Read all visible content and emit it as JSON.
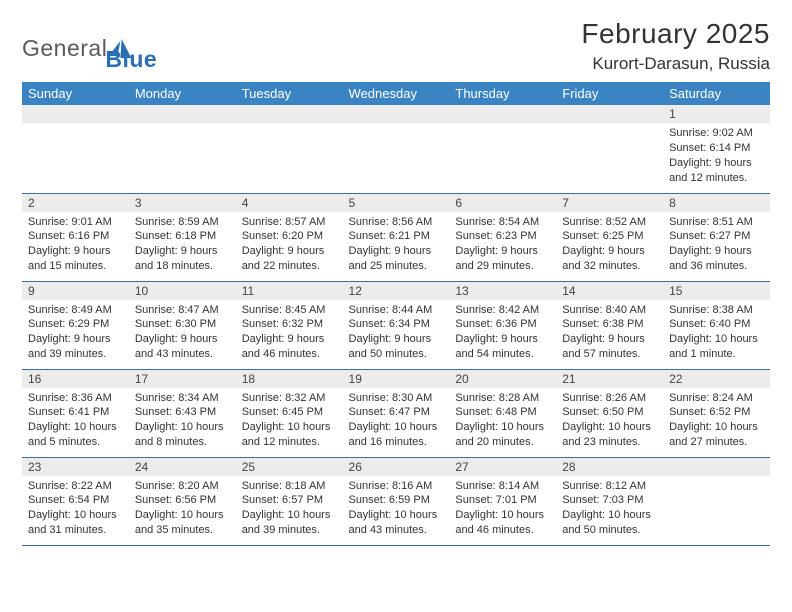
{
  "brand": {
    "word1": "General",
    "word2": "Blue"
  },
  "header": {
    "month_title": "February 2025",
    "location": "Kurort-Darasun, Russia"
  },
  "colors": {
    "header_bg": "#3b84c4",
    "header_text": "#ffffff",
    "row_divider": "#3b6fa1",
    "daynum_bg": "#ececec",
    "body_text": "#333333",
    "brand_gray": "#5b5b5b",
    "brand_blue": "#2b6fb3"
  },
  "day_names": [
    "Sunday",
    "Monday",
    "Tuesday",
    "Wednesday",
    "Thursday",
    "Friday",
    "Saturday"
  ],
  "weeks": [
    [
      {
        "n": "",
        "sr": "",
        "ss": "",
        "dl": ""
      },
      {
        "n": "",
        "sr": "",
        "ss": "",
        "dl": ""
      },
      {
        "n": "",
        "sr": "",
        "ss": "",
        "dl": ""
      },
      {
        "n": "",
        "sr": "",
        "ss": "",
        "dl": ""
      },
      {
        "n": "",
        "sr": "",
        "ss": "",
        "dl": ""
      },
      {
        "n": "",
        "sr": "",
        "ss": "",
        "dl": ""
      },
      {
        "n": "1",
        "sr": "Sunrise: 9:02 AM",
        "ss": "Sunset: 6:14 PM",
        "dl": "Daylight: 9 hours and 12 minutes."
      }
    ],
    [
      {
        "n": "2",
        "sr": "Sunrise: 9:01 AM",
        "ss": "Sunset: 6:16 PM",
        "dl": "Daylight: 9 hours and 15 minutes."
      },
      {
        "n": "3",
        "sr": "Sunrise: 8:59 AM",
        "ss": "Sunset: 6:18 PM",
        "dl": "Daylight: 9 hours and 18 minutes."
      },
      {
        "n": "4",
        "sr": "Sunrise: 8:57 AM",
        "ss": "Sunset: 6:20 PM",
        "dl": "Daylight: 9 hours and 22 minutes."
      },
      {
        "n": "5",
        "sr": "Sunrise: 8:56 AM",
        "ss": "Sunset: 6:21 PM",
        "dl": "Daylight: 9 hours and 25 minutes."
      },
      {
        "n": "6",
        "sr": "Sunrise: 8:54 AM",
        "ss": "Sunset: 6:23 PM",
        "dl": "Daylight: 9 hours and 29 minutes."
      },
      {
        "n": "7",
        "sr": "Sunrise: 8:52 AM",
        "ss": "Sunset: 6:25 PM",
        "dl": "Daylight: 9 hours and 32 minutes."
      },
      {
        "n": "8",
        "sr": "Sunrise: 8:51 AM",
        "ss": "Sunset: 6:27 PM",
        "dl": "Daylight: 9 hours and 36 minutes."
      }
    ],
    [
      {
        "n": "9",
        "sr": "Sunrise: 8:49 AM",
        "ss": "Sunset: 6:29 PM",
        "dl": "Daylight: 9 hours and 39 minutes."
      },
      {
        "n": "10",
        "sr": "Sunrise: 8:47 AM",
        "ss": "Sunset: 6:30 PM",
        "dl": "Daylight: 9 hours and 43 minutes."
      },
      {
        "n": "11",
        "sr": "Sunrise: 8:45 AM",
        "ss": "Sunset: 6:32 PM",
        "dl": "Daylight: 9 hours and 46 minutes."
      },
      {
        "n": "12",
        "sr": "Sunrise: 8:44 AM",
        "ss": "Sunset: 6:34 PM",
        "dl": "Daylight: 9 hours and 50 minutes."
      },
      {
        "n": "13",
        "sr": "Sunrise: 8:42 AM",
        "ss": "Sunset: 6:36 PM",
        "dl": "Daylight: 9 hours and 54 minutes."
      },
      {
        "n": "14",
        "sr": "Sunrise: 8:40 AM",
        "ss": "Sunset: 6:38 PM",
        "dl": "Daylight: 9 hours and 57 minutes."
      },
      {
        "n": "15",
        "sr": "Sunrise: 8:38 AM",
        "ss": "Sunset: 6:40 PM",
        "dl": "Daylight: 10 hours and 1 minute."
      }
    ],
    [
      {
        "n": "16",
        "sr": "Sunrise: 8:36 AM",
        "ss": "Sunset: 6:41 PM",
        "dl": "Daylight: 10 hours and 5 minutes."
      },
      {
        "n": "17",
        "sr": "Sunrise: 8:34 AM",
        "ss": "Sunset: 6:43 PM",
        "dl": "Daylight: 10 hours and 8 minutes."
      },
      {
        "n": "18",
        "sr": "Sunrise: 8:32 AM",
        "ss": "Sunset: 6:45 PM",
        "dl": "Daylight: 10 hours and 12 minutes."
      },
      {
        "n": "19",
        "sr": "Sunrise: 8:30 AM",
        "ss": "Sunset: 6:47 PM",
        "dl": "Daylight: 10 hours and 16 minutes."
      },
      {
        "n": "20",
        "sr": "Sunrise: 8:28 AM",
        "ss": "Sunset: 6:48 PM",
        "dl": "Daylight: 10 hours and 20 minutes."
      },
      {
        "n": "21",
        "sr": "Sunrise: 8:26 AM",
        "ss": "Sunset: 6:50 PM",
        "dl": "Daylight: 10 hours and 23 minutes."
      },
      {
        "n": "22",
        "sr": "Sunrise: 8:24 AM",
        "ss": "Sunset: 6:52 PM",
        "dl": "Daylight: 10 hours and 27 minutes."
      }
    ],
    [
      {
        "n": "23",
        "sr": "Sunrise: 8:22 AM",
        "ss": "Sunset: 6:54 PM",
        "dl": "Daylight: 10 hours and 31 minutes."
      },
      {
        "n": "24",
        "sr": "Sunrise: 8:20 AM",
        "ss": "Sunset: 6:56 PM",
        "dl": "Daylight: 10 hours and 35 minutes."
      },
      {
        "n": "25",
        "sr": "Sunrise: 8:18 AM",
        "ss": "Sunset: 6:57 PM",
        "dl": "Daylight: 10 hours and 39 minutes."
      },
      {
        "n": "26",
        "sr": "Sunrise: 8:16 AM",
        "ss": "Sunset: 6:59 PM",
        "dl": "Daylight: 10 hours and 43 minutes."
      },
      {
        "n": "27",
        "sr": "Sunrise: 8:14 AM",
        "ss": "Sunset: 7:01 PM",
        "dl": "Daylight: 10 hours and 46 minutes."
      },
      {
        "n": "28",
        "sr": "Sunrise: 8:12 AM",
        "ss": "Sunset: 7:03 PM",
        "dl": "Daylight: 10 hours and 50 minutes."
      },
      {
        "n": "",
        "sr": "",
        "ss": "",
        "dl": ""
      }
    ]
  ]
}
